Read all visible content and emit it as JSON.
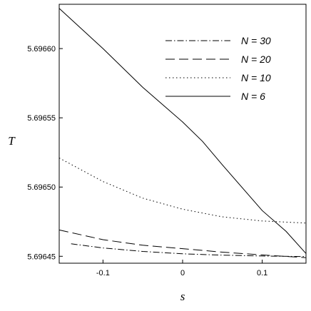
{
  "chart_data": {
    "type": "line",
    "xlabel": "s",
    "ylabel": "T",
    "xlim": [
      -0.155,
      0.155
    ],
    "ylim": [
      5.696445,
      5.696632
    ],
    "x_ticks": [
      -0.1,
      0,
      0.1
    ],
    "x_tick_labels": [
      "-0.1",
      "0",
      "0.1"
    ],
    "y_ticks": [
      5.69645,
      5.6965,
      5.69655,
      5.6966
    ],
    "y_tick_labels": [
      "5.69645",
      "5.69650",
      "5.69655",
      "5.69660"
    ],
    "legend_position": "top-right",
    "grid": false,
    "series": [
      {
        "name": "N = 30",
        "dash": "dashdot",
        "x": [
          -0.14,
          -0.1,
          -0.05,
          0,
          0.05,
          0.1,
          0.155
        ],
        "y": [
          5.696459,
          5.696456,
          5.6964535,
          5.6964518,
          5.6964508,
          5.6964502,
          5.6964498
        ]
      },
      {
        "name": "N = 20",
        "dash": "longdash",
        "x": [
          -0.155,
          -0.1,
          -0.05,
          0,
          0.05,
          0.1,
          0.155
        ],
        "y": [
          5.696469,
          5.696462,
          5.696458,
          5.6964555,
          5.696453,
          5.696451,
          5.696449
        ]
      },
      {
        "name": "N = 10",
        "dash": "dot",
        "x": [
          -0.155,
          -0.1,
          -0.05,
          0,
          0.05,
          0.1,
          0.155
        ],
        "y": [
          5.696521,
          5.696504,
          5.696492,
          5.696484,
          5.6964785,
          5.6964755,
          5.696474
        ]
      },
      {
        "name": "N = 6",
        "dash": "solid",
        "x": [
          -0.155,
          -0.1,
          -0.05,
          -0.02,
          0,
          0.025,
          0.05,
          0.1,
          0.13,
          0.155
        ],
        "y": [
          5.696629,
          5.6966,
          5.696572,
          5.696557,
          5.696547,
          5.696533,
          5.696516,
          5.696483,
          5.696468,
          5.696452
        ]
      }
    ]
  }
}
